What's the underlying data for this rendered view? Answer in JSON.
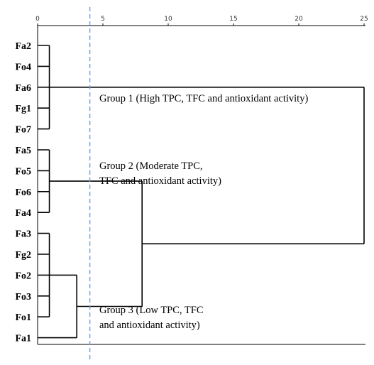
{
  "chart_data": {
    "type": "dendrogram",
    "x_axis": {
      "ticks": [
        0,
        5,
        10,
        15,
        20,
        25
      ],
      "range": [
        0,
        25
      ]
    },
    "leaves": [
      "Fa2",
      "Fo4",
      "Fa6",
      "Fg1",
      "Fo7",
      "Fa5",
      "Fo5",
      "Fo6",
      "Fa4",
      "Fa3",
      "Fg2",
      "Fo2",
      "Fo3",
      "Fo1",
      "Fa1"
    ],
    "merges": [
      {
        "members": [
          "Fa2",
          "Fo4",
          "Fa6",
          "Fg1",
          "Fo7"
        ],
        "height": 0.9
      },
      {
        "members": [
          "Fa5",
          "Fo5",
          "Fo6",
          "Fa4"
        ],
        "height": 0.9
      },
      {
        "members": [
          "Fa3",
          "Fg2",
          "Fo2",
          "Fo3",
          "Fo1"
        ],
        "height": 0.9
      },
      {
        "members": [
          "Fa3",
          "Fg2",
          "Fo2",
          "Fo3",
          "Fo1",
          "Fa1"
        ],
        "height": 3.0
      },
      {
        "members": [
          "Fa5",
          "Fo5",
          "Fo6",
          "Fa4",
          "Fa3",
          "Fg2",
          "Fo2",
          "Fo3",
          "Fo1",
          "Fa1"
        ],
        "height": 8.0
      },
      {
        "members": [
          "Fa2",
          "Fo4",
          "Fa6",
          "Fg1",
          "Fo7",
          "Fa5",
          "Fo5",
          "Fo6",
          "Fa4",
          "Fa3",
          "Fg2",
          "Fo2",
          "Fo3",
          "Fo1",
          "Fa1"
        ],
        "height": 25.0
      }
    ],
    "cut_line": {
      "x": 4.0,
      "style": "dashed",
      "color": "#6a9fd4"
    },
    "annotations": [
      {
        "lines": [
          "Group 1 (High TPC, TFC and antioxidant activity)"
        ]
      },
      {
        "lines": [
          "Group 2 (Moderate TPC,",
          "TFC and antioxidant activity)"
        ]
      },
      {
        "lines": [
          "Group 3 (Low TPC, TFC",
          "and antioxidant activity)"
        ]
      }
    ]
  }
}
